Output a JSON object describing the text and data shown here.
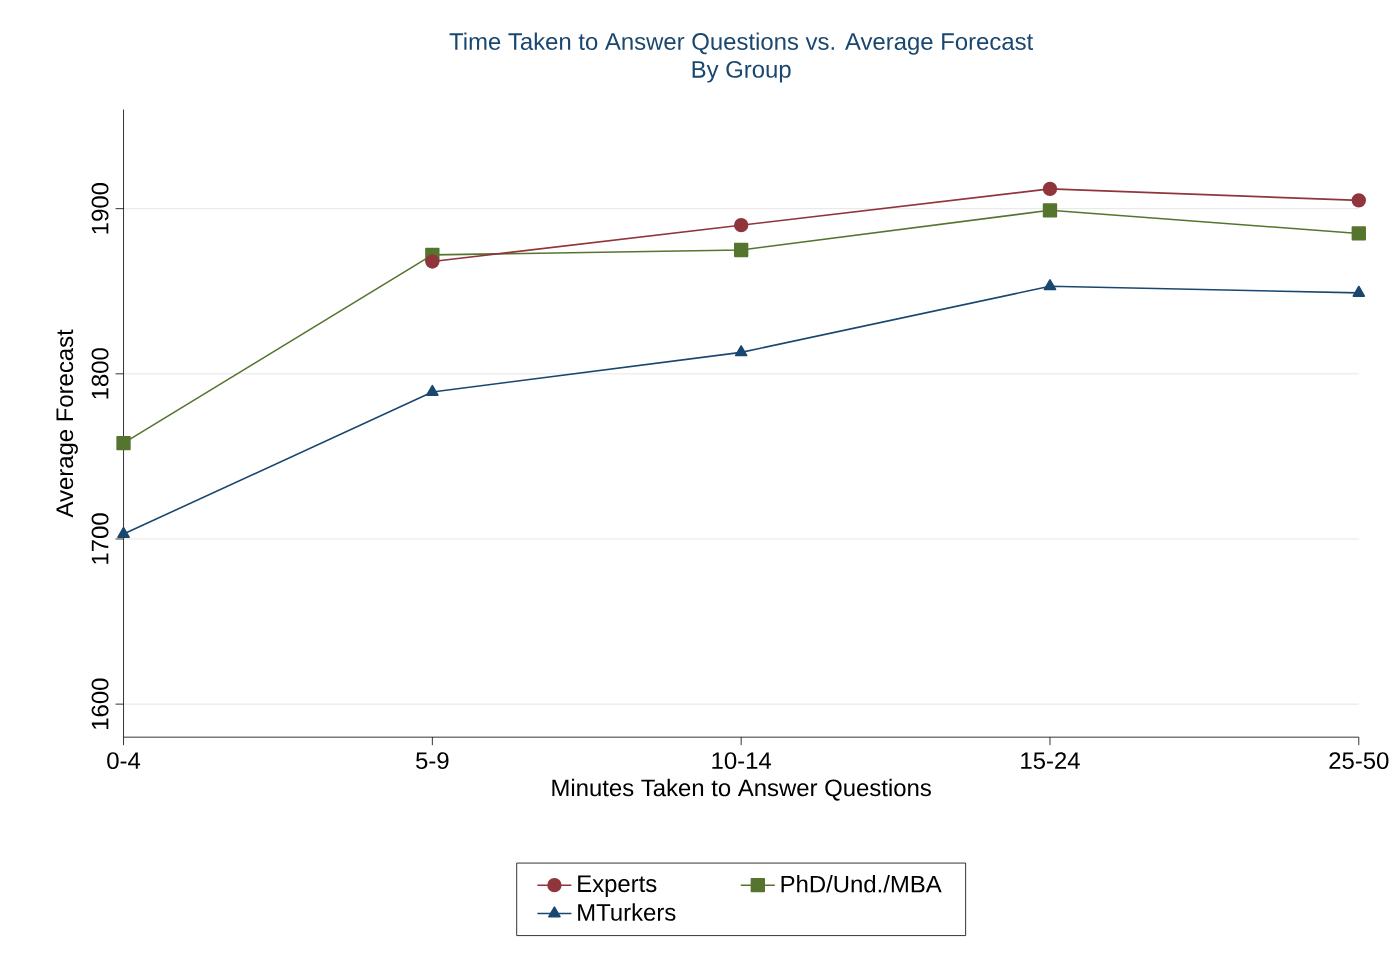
{
  "chart_data": {
    "type": "line",
    "title": "Time Taken to Answer Questions vs. Average Forecast",
    "subtitle": "By Group",
    "xlabel": "Minutes Taken to Answer Questions",
    "ylabel": "Average Forecast",
    "categories": [
      "0-4",
      "5-9",
      "10-14",
      "15-24",
      "25-50"
    ],
    "series": [
      {
        "name": "Experts",
        "color": "#90353b",
        "marker": "circle",
        "values": [
          null,
          1868,
          1890,
          1912,
          1905
        ]
      },
      {
        "name": "PhD/Und./MBA",
        "color": "#55752f",
        "marker": "square",
        "values": [
          1758,
          1872,
          1875,
          1899,
          1885
        ]
      },
      {
        "name": "MTurkers",
        "color": "#1a476f",
        "marker": "triangle",
        "values": [
          1703,
          1789,
          1813,
          1853,
          1849
        ]
      }
    ],
    "ylim": [
      1580,
      1960
    ],
    "yticks": [
      1600,
      1700,
      1800,
      1900
    ],
    "grid": "y",
    "legend": "bottom"
  }
}
